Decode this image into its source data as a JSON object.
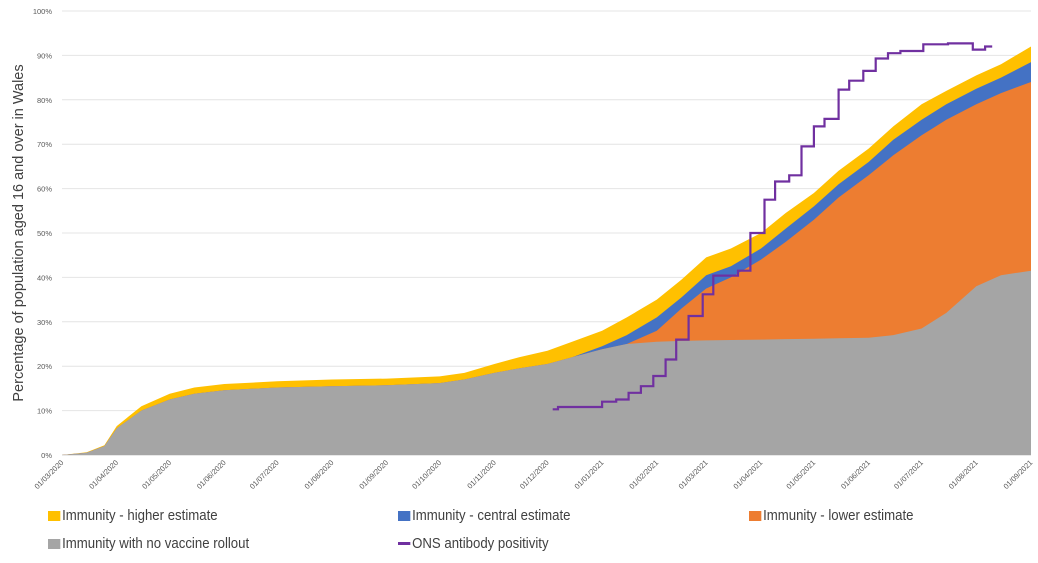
{
  "chart_data": {
    "type": "area",
    "ylabel": "Percentage of population aged 16 and over in Wales",
    "xlabel": "",
    "ylim": [
      0,
      100
    ],
    "yticks": [
      "0%",
      "10%",
      "20%",
      "30%",
      "40%",
      "50%",
      "60%",
      "70%",
      "80%",
      "90%",
      "100%"
    ],
    "xlim": [
      "2020-03-01",
      "2021-09-01"
    ],
    "xticks": [
      "01/03/2020",
      "01/04/2020",
      "01/05/2020",
      "01/06/2020",
      "01/07/2020",
      "01/08/2020",
      "01/09/2020",
      "01/10/2020",
      "01/11/2020",
      "01/12/2020",
      "01/01/2021",
      "01/02/2021",
      "01/03/2021",
      "01/04/2021",
      "01/05/2021",
      "01/06/2021",
      "01/07/2021",
      "01/08/2021",
      "01/09/2021"
    ],
    "grid": true,
    "legend_position": "bottom",
    "x": [
      "2020-03-01",
      "2020-03-15",
      "2020-03-25",
      "2020-04-01",
      "2020-04-15",
      "2020-05-01",
      "2020-05-15",
      "2020-06-01",
      "2020-07-01",
      "2020-08-01",
      "2020-09-01",
      "2020-10-01",
      "2020-10-15",
      "2020-11-01",
      "2020-11-15",
      "2020-12-01",
      "2020-12-15",
      "2021-01-01",
      "2021-01-15",
      "2021-02-01",
      "2021-02-15",
      "2021-03-01",
      "2021-03-15",
      "2021-04-01",
      "2021-04-15",
      "2021-05-01",
      "2021-05-15",
      "2021-06-01",
      "2021-06-15",
      "2021-07-01",
      "2021-07-15",
      "2021-08-01",
      "2021-08-15",
      "2021-09-01"
    ],
    "series": [
      {
        "name": "Immunity - higher estimate",
        "color": "#FFC000",
        "values": [
          0,
          0.6,
          2.2,
          6.5,
          11,
          13.8,
          15.2,
          16,
          16.6,
          17,
          17.2,
          17.7,
          18.5,
          20.5,
          22,
          23.5,
          25.5,
          28,
          31,
          35,
          39.5,
          44.5,
          46.5,
          50,
          54.5,
          59,
          64,
          69,
          74,
          79,
          82,
          85.5,
          88,
          92
        ]
      },
      {
        "name": "Immunity - central estimate",
        "color": "#4472C4",
        "values": [
          0,
          0.5,
          2,
          6,
          10,
          12.5,
          13.8,
          14.6,
          15.2,
          15.5,
          15.7,
          16.2,
          17,
          18.5,
          19.5,
          20.5,
          22,
          24.5,
          27,
          31,
          35.5,
          40.5,
          42.5,
          46.5,
          51,
          56,
          61,
          66,
          71,
          75.5,
          79,
          82.5,
          85,
          88.5
        ]
      },
      {
        "name": "Immunity - lower estimate",
        "color": "#ED7D31",
        "values": [
          0,
          0.5,
          2,
          6,
          10,
          12.5,
          13.8,
          14.6,
          15.2,
          15.5,
          15.7,
          16.2,
          17,
          18.5,
          19.5,
          20.5,
          22,
          23.8,
          25,
          28,
          33,
          37.5,
          40,
          44,
          48,
          53,
          58,
          63,
          67.5,
          72,
          75.5,
          79,
          81.5,
          84
        ]
      },
      {
        "name": "Immunity with no vaccine rollout",
        "color": "#A5A5A5",
        "values": [
          0,
          0.5,
          2,
          6,
          10,
          12.5,
          13.8,
          14.6,
          15.2,
          15.5,
          15.7,
          16.2,
          17,
          18.5,
          19.5,
          20.5,
          22,
          23.8,
          25,
          25.5,
          25.7,
          25.8,
          25.9,
          26,
          26.1,
          26.2,
          26.3,
          26.4,
          27,
          28.5,
          32,
          38,
          40.5,
          41.5
        ]
      }
    ],
    "line_series": {
      "name": "ONS antibody positivity",
      "color": "#7030A0",
      "step": true,
      "x": [
        "2020-12-04",
        "2020-12-07",
        "2021-01-01",
        "2021-01-09",
        "2021-01-16",
        "2021-01-23",
        "2021-01-30",
        "2021-02-06",
        "2021-02-12",
        "2021-02-19",
        "2021-02-27",
        "2021-03-05",
        "2021-03-19",
        "2021-03-26",
        "2021-04-03",
        "2021-04-09",
        "2021-04-17",
        "2021-04-24",
        "2021-05-01",
        "2021-05-07",
        "2021-05-15",
        "2021-05-21",
        "2021-05-29",
        "2021-06-05",
        "2021-06-12",
        "2021-06-19",
        "2021-07-02",
        "2021-07-16",
        "2021-07-30",
        "2021-08-06",
        "2021-08-10"
      ],
      "values": [
        10.3,
        10.8,
        12,
        12.5,
        14,
        15.5,
        17.8,
        21.5,
        26,
        31.3,
        36.2,
        40.4,
        41.5,
        50,
        57.5,
        61.6,
        63,
        69.5,
        74,
        75.7,
        82.3,
        84.3,
        86.5,
        89.3,
        90.5,
        91,
        92.5,
        92.7,
        91.3,
        92,
        92
      ]
    }
  },
  "legend": {
    "items": [
      {
        "label": "Immunity - higher estimate",
        "color": "#FFC000",
        "kind": "area"
      },
      {
        "label": "Immunity - central estimate",
        "color": "#4472C4",
        "kind": "area"
      },
      {
        "label": "Immunity - lower estimate",
        "color": "#ED7D31",
        "kind": "area"
      },
      {
        "label": "Immunity with no vaccine rollout",
        "color": "#A5A5A5",
        "kind": "area"
      },
      {
        "label": "ONS antibody positivity",
        "color": "#7030A0",
        "kind": "line"
      }
    ]
  }
}
